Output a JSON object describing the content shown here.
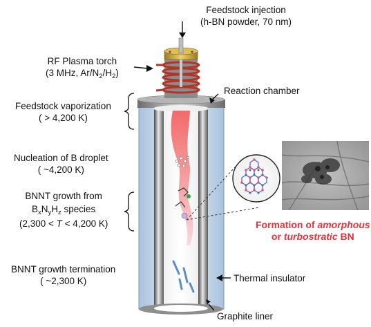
{
  "labels": {
    "feedstock_injection": "Feedstock injection",
    "feedstock_detail": "(h-BN powder, 70 nm)",
    "plasma_torch": "RF Plasma torch",
    "plasma_detail_prefix": "(3 MHz, Ar/N",
    "plasma_sub1": "2",
    "plasma_mid": "/H",
    "plasma_sub2": "2",
    "plasma_suffix": ")",
    "reaction_chamber": "Reaction chamber",
    "vaporization": "Feedstock vaporization",
    "vaporization_temp": "( > 4,200 K)",
    "nucleation": "Nucleation of B droplet",
    "nucleation_temp": "( ~4,200 K)",
    "growth_line1": "BNNT growth from",
    "growth_b": "B",
    "growth_x": "x",
    "growth_n": "N",
    "growth_y": "y",
    "growth_h": "H",
    "growth_z": "z",
    "growth_species": " species",
    "growth_temp_a": "(2,300 < ",
    "growth_temp_t": "T",
    "growth_temp_b": " < 4,200 K)",
    "termination": "BNNT growth termination",
    "termination_temp": "( ~2,300 K)",
    "thermal_insulator": "Thermal insulator",
    "graphite_liner": "Graphite liner",
    "formation_of": "Formation of ",
    "amorphous": "amorphous",
    "or": "or ",
    "turbostratic": "turbostratic",
    "bn": " BN"
  },
  "colors": {
    "highlight_red": "#e8323a",
    "plume": "#f47b7b",
    "coil": "#c0392b",
    "flange": "#d4a93a",
    "insulator": "#c9dcef"
  }
}
